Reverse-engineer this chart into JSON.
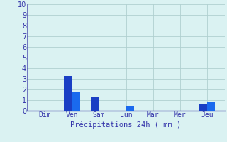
{
  "days": [
    "Dim",
    "Ven",
    "Sam",
    "Lun",
    "Mar",
    "Mer",
    "Jeu"
  ],
  "bar1_values": [
    0.0,
    3.3,
    1.3,
    0.0,
    0.0,
    0.0,
    0.7
  ],
  "bar2_values": [
    0.0,
    1.8,
    0.0,
    0.5,
    0.0,
    0.0,
    0.9
  ],
  "bar_color": "#1a3fc4",
  "bar_color2": "#1a6aee",
  "background_color": "#daf2f2",
  "grid_color": "#b0d0d0",
  "axis_color": "#4444aa",
  "tick_color": "#3333aa",
  "xlabel": "Précipitations 24h ( mm )",
  "ylim": [
    0,
    10
  ],
  "yticks": [
    0,
    1,
    2,
    3,
    4,
    5,
    6,
    7,
    8,
    9,
    10
  ],
  "bar_width": 0.3,
  "xlabel_fontsize": 7.5,
  "tick_fontsize": 7
}
